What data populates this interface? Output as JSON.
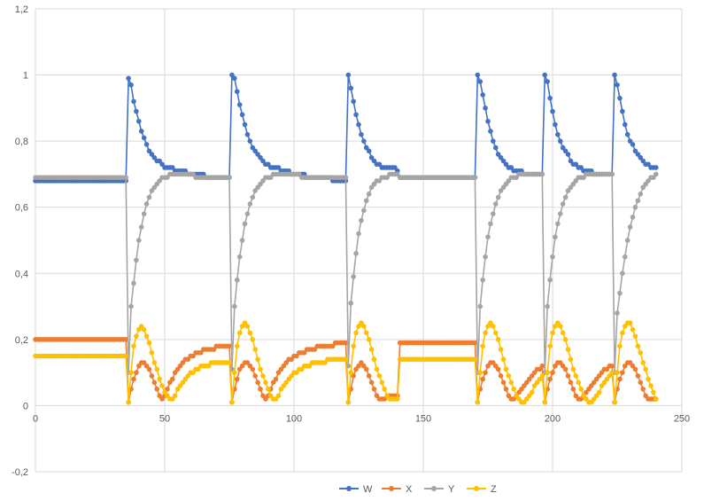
{
  "chart_data": {
    "type": "line",
    "title": "",
    "xlabel": "",
    "ylabel": "",
    "xlim": [
      0,
      250
    ],
    "ylim": [
      -0.2,
      1.2
    ],
    "x_ticks": [
      0,
      50,
      100,
      150,
      200,
      250
    ],
    "y_ticks": [
      -0.2,
      0,
      0.2,
      0.4,
      0.6,
      0.8,
      1,
      1.2
    ],
    "x_tick_labels": [
      "0",
      "50",
      "100",
      "150",
      "200",
      "250"
    ],
    "y_tick_labels": [
      "-0,2",
      "0",
      "0,2",
      "0,4",
      "0,6",
      "0,8",
      "1",
      "1,2"
    ],
    "grid": true,
    "legend_position": "bottom",
    "markers": true,
    "x": [
      0,
      1,
      2,
      3,
      4,
      5,
      6,
      7,
      8,
      9,
      10,
      11,
      12,
      13,
      14,
      15,
      16,
      17,
      18,
      19,
      20,
      21,
      22,
      23,
      24,
      25,
      26,
      27,
      28,
      29,
      30,
      31,
      32,
      33,
      34,
      35,
      36,
      37,
      38,
      39,
      40,
      41,
      42,
      43,
      44,
      45,
      46,
      47,
      48,
      49,
      50,
      51,
      52,
      53,
      54,
      55,
      56,
      57,
      58,
      59,
      60,
      61,
      62,
      63,
      64,
      65,
      66,
      67,
      68,
      69,
      70,
      71,
      72,
      73,
      74,
      75,
      76,
      77,
      78,
      79,
      80,
      81,
      82,
      83,
      84,
      85,
      86,
      87,
      88,
      89,
      90,
      91,
      92,
      93,
      94,
      95,
      96,
      97,
      98,
      99,
      100,
      101,
      102,
      103,
      104,
      105,
      106,
      107,
      108,
      109,
      110,
      111,
      112,
      113,
      114,
      115,
      116,
      117,
      118,
      119,
      120,
      121,
      122,
      123,
      124,
      125,
      126,
      127,
      128,
      129,
      130,
      131,
      132,
      133,
      134,
      135,
      136,
      137,
      138,
      139,
      140,
      141,
      142,
      143,
      144,
      145,
      146,
      147,
      148,
      149,
      150,
      151,
      152,
      153,
      154,
      155,
      156,
      157,
      158,
      159,
      160,
      161,
      162,
      163,
      164,
      165,
      166,
      167,
      168,
      169,
      170,
      171,
      172,
      173,
      174,
      175,
      176,
      177,
      178,
      179,
      180,
      181,
      182,
      183,
      184,
      185,
      186,
      187,
      188,
      189,
      190,
      191,
      192,
      193,
      194,
      195,
      196,
      197,
      198,
      199,
      200,
      201,
      202,
      203,
      204,
      205,
      206,
      207,
      208,
      209,
      210,
      211,
      212,
      213,
      214,
      215,
      216,
      217,
      218,
      219,
      220,
      221,
      222,
      223,
      224,
      225,
      226,
      227,
      228,
      229,
      230,
      231,
      232,
      233,
      234,
      235,
      236,
      237,
      238,
      239,
      240
    ],
    "series": [
      {
        "name": "W",
        "color": "#4472C4",
        "values": [
          0.68,
          0.68,
          0.68,
          0.68,
          0.68,
          0.68,
          0.68,
          0.68,
          0.68,
          0.68,
          0.68,
          0.68,
          0.68,
          0.68,
          0.68,
          0.68,
          0.68,
          0.68,
          0.68,
          0.68,
          0.68,
          0.68,
          0.68,
          0.68,
          0.68,
          0.68,
          0.68,
          0.68,
          0.68,
          0.68,
          0.68,
          0.68,
          0.68,
          0.68,
          0.68,
          0.68,
          0.99,
          0.97,
          0.92,
          0.89,
          0.86,
          0.83,
          0.81,
          0.79,
          0.77,
          0.76,
          0.75,
          0.74,
          0.74,
          0.73,
          0.72,
          0.72,
          0.72,
          0.72,
          0.71,
          0.71,
          0.71,
          0.71,
          0.71,
          0.7,
          0.7,
          0.7,
          0.7,
          0.7,
          0.7,
          0.7,
          0.69,
          0.69,
          0.69,
          0.69,
          0.69,
          0.69,
          0.69,
          0.69,
          0.69,
          0.69,
          1.0,
          0.99,
          0.95,
          0.91,
          0.88,
          0.85,
          0.82,
          0.8,
          0.78,
          0.77,
          0.76,
          0.75,
          0.74,
          0.73,
          0.73,
          0.72,
          0.72,
          0.72,
          0.72,
          0.71,
          0.71,
          0.71,
          0.71,
          0.7,
          0.7,
          0.7,
          0.7,
          0.7,
          0.7,
          0.69,
          0.69,
          0.69,
          0.69,
          0.69,
          0.69,
          0.69,
          0.69,
          0.69,
          0.69,
          0.68,
          0.68,
          0.68,
          0.68,
          0.68,
          0.68,
          1.0,
          0.96,
          0.92,
          0.88,
          0.85,
          0.82,
          0.8,
          0.78,
          0.77,
          0.75,
          0.74,
          0.73,
          0.73,
          0.72,
          0.72,
          0.72,
          0.72,
          0.72,
          0.72,
          0.71,
          0.69,
          0.69,
          0.69,
          0.69,
          0.69,
          0.69,
          0.69,
          0.69,
          0.69,
          0.69,
          0.69,
          0.69,
          0.69,
          0.69,
          0.69,
          0.69,
          0.69,
          0.69,
          0.69,
          0.69,
          0.69,
          0.69,
          0.69,
          0.69,
          0.69,
          0.69,
          0.69,
          0.69,
          0.69,
          0.69,
          1.0,
          0.98,
          0.94,
          0.9,
          0.86,
          0.83,
          0.8,
          0.78,
          0.76,
          0.75,
          0.74,
          0.73,
          0.72,
          0.72,
          0.71,
          0.71,
          0.71,
          0.71,
          0.7,
          0.7,
          0.7,
          0.7,
          0.7,
          0.7,
          0.7,
          0.7,
          1.0,
          0.98,
          0.93,
          0.89,
          0.85,
          0.82,
          0.8,
          0.78,
          0.77,
          0.76,
          0.74,
          0.73,
          0.73,
          0.72,
          0.72,
          0.71,
          0.71,
          0.71,
          0.71,
          0.7,
          0.7,
          0.7,
          0.7,
          0.7,
          0.7,
          0.7,
          0.7,
          1.0,
          0.97,
          0.93,
          0.89,
          0.85,
          0.82,
          0.8,
          0.79,
          0.77,
          0.76,
          0.75,
          0.74,
          0.73,
          0.73,
          0.72,
          0.72,
          0.72
        ]
      },
      {
        "name": "X",
        "color": "#ED7D31",
        "values": [
          0.2,
          0.2,
          0.2,
          0.2,
          0.2,
          0.2,
          0.2,
          0.2,
          0.2,
          0.2,
          0.2,
          0.2,
          0.2,
          0.2,
          0.2,
          0.2,
          0.2,
          0.2,
          0.2,
          0.2,
          0.2,
          0.2,
          0.2,
          0.2,
          0.2,
          0.2,
          0.2,
          0.2,
          0.2,
          0.2,
          0.2,
          0.2,
          0.2,
          0.2,
          0.2,
          0.2,
          0.01,
          0.05,
          0.08,
          0.1,
          0.12,
          0.13,
          0.13,
          0.12,
          0.11,
          0.09,
          0.07,
          0.05,
          0.03,
          0.02,
          0.03,
          0.05,
          0.07,
          0.08,
          0.1,
          0.11,
          0.12,
          0.13,
          0.14,
          0.14,
          0.15,
          0.15,
          0.16,
          0.16,
          0.16,
          0.17,
          0.17,
          0.17,
          0.17,
          0.17,
          0.18,
          0.18,
          0.18,
          0.18,
          0.18,
          0.18,
          0.01,
          0.05,
          0.08,
          0.11,
          0.12,
          0.13,
          0.13,
          0.12,
          0.11,
          0.09,
          0.07,
          0.05,
          0.03,
          0.02,
          0.03,
          0.05,
          0.07,
          0.08,
          0.1,
          0.11,
          0.12,
          0.13,
          0.14,
          0.14,
          0.15,
          0.15,
          0.16,
          0.16,
          0.16,
          0.17,
          0.17,
          0.17,
          0.17,
          0.18,
          0.18,
          0.18,
          0.18,
          0.18,
          0.18,
          0.18,
          0.19,
          0.19,
          0.19,
          0.19,
          0.19,
          0.01,
          0.05,
          0.09,
          0.11,
          0.12,
          0.13,
          0.12,
          0.11,
          0.09,
          0.07,
          0.05,
          0.03,
          0.02,
          0.02,
          0.02,
          0.03,
          0.03,
          0.03,
          0.03,
          0.03,
          0.19,
          0.19,
          0.19,
          0.19,
          0.19,
          0.19,
          0.19,
          0.19,
          0.19,
          0.19,
          0.19,
          0.19,
          0.19,
          0.19,
          0.19,
          0.19,
          0.19,
          0.19,
          0.19,
          0.19,
          0.19,
          0.19,
          0.19,
          0.19,
          0.19,
          0.19,
          0.19,
          0.19,
          0.19,
          0.19,
          0.01,
          0.05,
          0.08,
          0.1,
          0.12,
          0.13,
          0.13,
          0.12,
          0.11,
          0.09,
          0.07,
          0.05,
          0.03,
          0.02,
          0.02,
          0.03,
          0.04,
          0.05,
          0.06,
          0.07,
          0.08,
          0.09,
          0.1,
          0.11,
          0.11,
          0.12,
          0.01,
          0.05,
          0.08,
          0.1,
          0.12,
          0.13,
          0.13,
          0.12,
          0.11,
          0.09,
          0.07,
          0.05,
          0.03,
          0.02,
          0.02,
          0.03,
          0.04,
          0.05,
          0.06,
          0.07,
          0.08,
          0.09,
          0.1,
          0.11,
          0.11,
          0.12,
          0.12,
          0.01,
          0.05,
          0.08,
          0.1,
          0.12,
          0.13,
          0.13,
          0.12,
          0.11,
          0.09,
          0.07,
          0.05,
          0.03,
          0.02,
          0.02,
          0.02,
          0.02
        ]
      },
      {
        "name": "Y",
        "color": "#A5A5A5",
        "values": [
          0.69,
          0.69,
          0.69,
          0.69,
          0.69,
          0.69,
          0.69,
          0.69,
          0.69,
          0.69,
          0.69,
          0.69,
          0.69,
          0.69,
          0.69,
          0.69,
          0.69,
          0.69,
          0.69,
          0.69,
          0.69,
          0.69,
          0.69,
          0.69,
          0.69,
          0.69,
          0.69,
          0.69,
          0.69,
          0.69,
          0.69,
          0.69,
          0.69,
          0.69,
          0.69,
          0.69,
          0.1,
          0.3,
          0.37,
          0.44,
          0.5,
          0.54,
          0.58,
          0.61,
          0.63,
          0.65,
          0.66,
          0.67,
          0.68,
          0.69,
          0.69,
          0.69,
          0.7,
          0.7,
          0.7,
          0.7,
          0.7,
          0.7,
          0.7,
          0.7,
          0.7,
          0.7,
          0.69,
          0.69,
          0.69,
          0.69,
          0.69,
          0.69,
          0.69,
          0.69,
          0.69,
          0.69,
          0.69,
          0.69,
          0.69,
          0.69,
          0.11,
          0.3,
          0.38,
          0.45,
          0.5,
          0.55,
          0.58,
          0.61,
          0.63,
          0.65,
          0.66,
          0.67,
          0.68,
          0.69,
          0.69,
          0.69,
          0.7,
          0.7,
          0.7,
          0.7,
          0.7,
          0.7,
          0.7,
          0.7,
          0.7,
          0.7,
          0.7,
          0.69,
          0.69,
          0.69,
          0.69,
          0.69,
          0.69,
          0.69,
          0.69,
          0.69,
          0.69,
          0.69,
          0.69,
          0.69,
          0.69,
          0.69,
          0.69,
          0.69,
          0.69,
          0.12,
          0.31,
          0.39,
          0.46,
          0.52,
          0.56,
          0.59,
          0.62,
          0.64,
          0.66,
          0.67,
          0.68,
          0.68,
          0.69,
          0.69,
          0.69,
          0.7,
          0.7,
          0.7,
          0.7,
          0.69,
          0.69,
          0.69,
          0.69,
          0.69,
          0.69,
          0.69,
          0.69,
          0.69,
          0.69,
          0.69,
          0.69,
          0.69,
          0.69,
          0.69,
          0.69,
          0.69,
          0.69,
          0.69,
          0.69,
          0.69,
          0.69,
          0.69,
          0.69,
          0.69,
          0.69,
          0.69,
          0.69,
          0.69,
          0.69,
          0.1,
          0.3,
          0.38,
          0.45,
          0.51,
          0.55,
          0.58,
          0.61,
          0.63,
          0.65,
          0.66,
          0.67,
          0.68,
          0.69,
          0.69,
          0.69,
          0.7,
          0.7,
          0.7,
          0.7,
          0.7,
          0.7,
          0.7,
          0.7,
          0.7,
          0.7,
          0.1,
          0.3,
          0.38,
          0.45,
          0.51,
          0.55,
          0.58,
          0.61,
          0.63,
          0.65,
          0.66,
          0.67,
          0.68,
          0.69,
          0.69,
          0.69,
          0.7,
          0.7,
          0.7,
          0.7,
          0.7,
          0.7,
          0.7,
          0.7,
          0.7,
          0.7,
          0.7,
          0.1,
          0.28,
          0.34,
          0.4,
          0.45,
          0.5,
          0.54,
          0.57,
          0.6,
          0.62,
          0.64,
          0.66,
          0.67,
          0.68,
          0.69,
          0.69,
          0.7
        ]
      },
      {
        "name": "Z",
        "color": "#FFC000",
        "values": [
          0.15,
          0.15,
          0.15,
          0.15,
          0.15,
          0.15,
          0.15,
          0.15,
          0.15,
          0.15,
          0.15,
          0.15,
          0.15,
          0.15,
          0.15,
          0.15,
          0.15,
          0.15,
          0.15,
          0.15,
          0.15,
          0.15,
          0.15,
          0.15,
          0.15,
          0.15,
          0.15,
          0.15,
          0.15,
          0.15,
          0.15,
          0.15,
          0.15,
          0.15,
          0.15,
          0.15,
          0.01,
          0.1,
          0.18,
          0.21,
          0.23,
          0.24,
          0.23,
          0.21,
          0.19,
          0.16,
          0.13,
          0.11,
          0.08,
          0.06,
          0.04,
          0.03,
          0.02,
          0.02,
          0.03,
          0.05,
          0.06,
          0.07,
          0.08,
          0.09,
          0.1,
          0.1,
          0.11,
          0.11,
          0.12,
          0.12,
          0.12,
          0.12,
          0.13,
          0.13,
          0.13,
          0.13,
          0.13,
          0.13,
          0.13,
          0.13,
          0.01,
          0.1,
          0.18,
          0.22,
          0.24,
          0.25,
          0.24,
          0.22,
          0.2,
          0.17,
          0.14,
          0.11,
          0.09,
          0.07,
          0.05,
          0.03,
          0.02,
          0.02,
          0.03,
          0.05,
          0.06,
          0.07,
          0.08,
          0.09,
          0.1,
          0.1,
          0.11,
          0.11,
          0.12,
          0.12,
          0.12,
          0.13,
          0.13,
          0.13,
          0.13,
          0.13,
          0.13,
          0.14,
          0.14,
          0.14,
          0.14,
          0.14,
          0.14,
          0.14,
          0.14,
          0.01,
          0.1,
          0.18,
          0.22,
          0.24,
          0.25,
          0.24,
          0.22,
          0.2,
          0.17,
          0.14,
          0.11,
          0.09,
          0.07,
          0.05,
          0.03,
          0.02,
          0.02,
          0.02,
          0.02,
          0.14,
          0.14,
          0.14,
          0.14,
          0.14,
          0.14,
          0.14,
          0.14,
          0.14,
          0.14,
          0.14,
          0.14,
          0.14,
          0.14,
          0.14,
          0.14,
          0.14,
          0.14,
          0.14,
          0.14,
          0.14,
          0.14,
          0.14,
          0.14,
          0.14,
          0.14,
          0.14,
          0.14,
          0.14,
          0.14,
          0.01,
          0.1,
          0.18,
          0.22,
          0.24,
          0.25,
          0.24,
          0.22,
          0.2,
          0.17,
          0.14,
          0.11,
          0.09,
          0.07,
          0.05,
          0.03,
          0.02,
          0.01,
          0.01,
          0.02,
          0.03,
          0.04,
          0.06,
          0.07,
          0.08,
          0.09,
          0.01,
          0.1,
          0.18,
          0.22,
          0.24,
          0.25,
          0.24,
          0.22,
          0.2,
          0.17,
          0.14,
          0.11,
          0.09,
          0.07,
          0.05,
          0.03,
          0.02,
          0.01,
          0.01,
          0.02,
          0.03,
          0.04,
          0.06,
          0.07,
          0.08,
          0.09,
          0.1,
          0.01,
          0.1,
          0.18,
          0.22,
          0.24,
          0.25,
          0.25,
          0.23,
          0.21,
          0.18,
          0.16,
          0.13,
          0.11,
          0.08,
          0.06,
          0.04,
          0.02
        ]
      }
    ]
  }
}
